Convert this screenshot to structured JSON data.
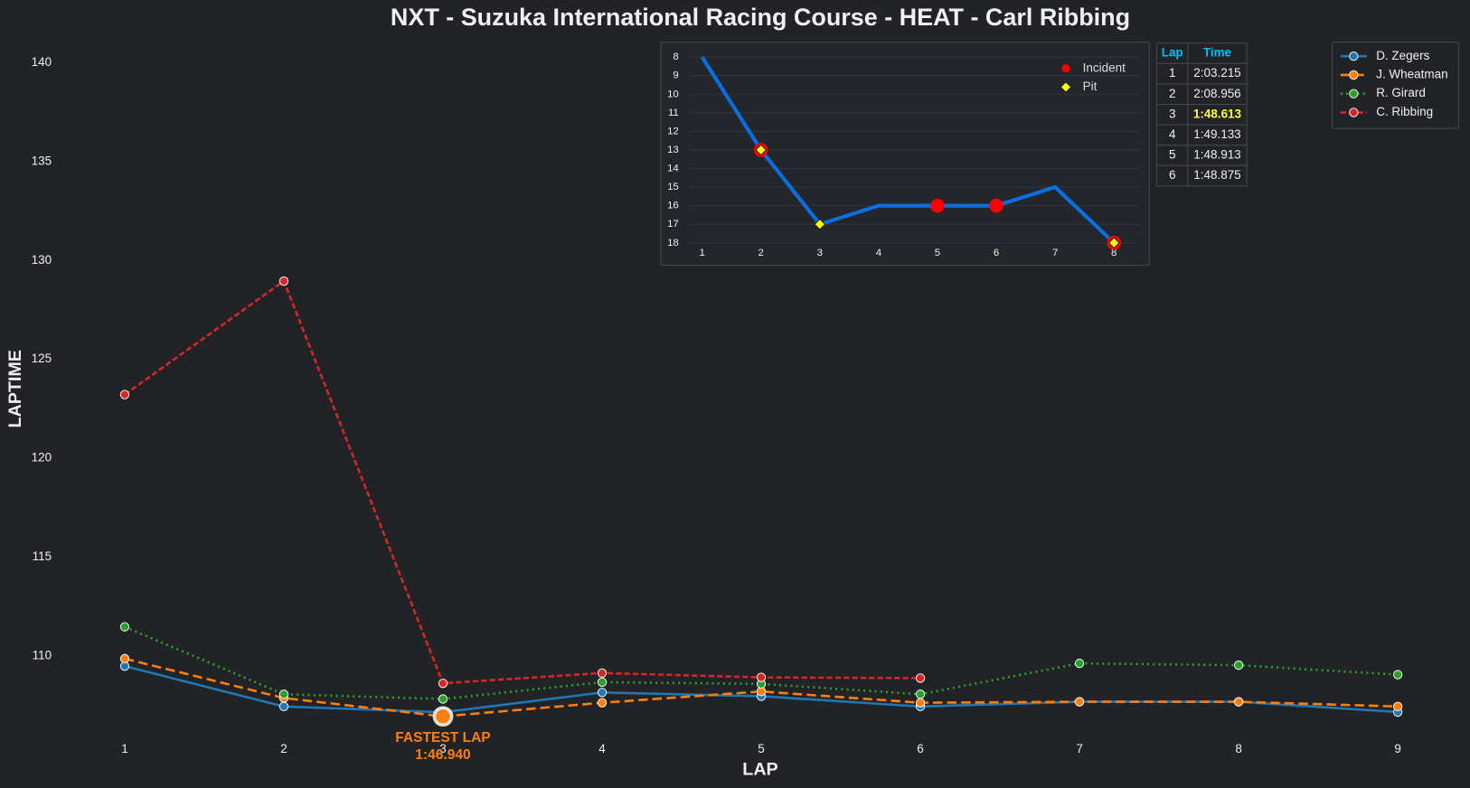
{
  "chart_data": [
    {
      "type": "line",
      "title": "NXT - Suzuka International Racing Course - HEAT - Carl Ribbing",
      "x_label": "LAP",
      "y_label": "LAPTIME",
      "x": [
        1,
        2,
        3,
        4,
        5,
        6,
        7,
        8,
        9
      ],
      "xlim": [
        0.8,
        9.2
      ],
      "xticks": [
        1,
        2,
        3,
        4,
        5,
        6,
        7,
        8,
        9
      ],
      "ylim": [
        106,
        141
      ],
      "yticks": [
        110,
        115,
        120,
        125,
        130,
        135,
        140
      ],
      "legend": "upper right",
      "series": [
        {
          "name": "D. Zegers",
          "color": "#1f77b4",
          "style": "solid",
          "values": [
            109.48,
            107.44,
            107.15,
            108.15,
            107.96,
            107.44,
            107.68,
            107.68,
            107.16
          ]
        },
        {
          "name": "J. Wheatman",
          "color": "#ff7f0e",
          "style": "dashed",
          "values": [
            109.86,
            107.87,
            106.94,
            107.63,
            108.2,
            107.63,
            107.68,
            107.68,
            107.44
          ]
        },
        {
          "name": "R. Girard",
          "color": "#2ca02c",
          "style": "dotted",
          "values": [
            111.47,
            108.06,
            107.82,
            108.67,
            108.58,
            108.06,
            109.62,
            109.53,
            109.05
          ]
        },
        {
          "name": "C. Ribbing",
          "color": "#d62728",
          "style": "dense-dashed",
          "values": [
            123.215,
            128.956,
            108.613,
            109.133,
            108.913,
            108.875,
            null,
            null,
            null
          ]
        }
      ],
      "highlight": {
        "series": 1,
        "point": 2,
        "lines": [
          "FASTEST LAP",
          "1:46.940"
        ],
        "color": "#ff7f0e"
      }
    },
    {
      "type": "line",
      "color": "#0a6fe0",
      "x": [
        1,
        2,
        3,
        4,
        5,
        6,
        7,
        8
      ],
      "values": [
        8,
        13,
        17,
        16,
        16,
        16,
        15,
        18
      ],
      "xlim": [
        0.3,
        8.6
      ],
      "xticks": [
        1,
        2,
        3,
        4,
        5,
        6,
        7,
        8
      ],
      "ylim": [
        19.2,
        7.2
      ],
      "yticks": [
        8,
        9,
        10,
        11,
        12,
        13,
        14,
        15,
        16,
        17,
        18
      ],
      "grid": true,
      "markers": [
        {
          "name": "Incident",
          "color": "#ff0000",
          "shape": "circle",
          "laps": [
            2,
            5,
            6,
            8
          ]
        },
        {
          "name": "Pit",
          "color": "#ffff00",
          "shape": "diamond",
          "laps": [
            2,
            3,
            8
          ]
        }
      ]
    }
  ],
  "table": {
    "columns": [
      "Lap",
      "Time"
    ],
    "rows": [
      [
        "1",
        "2:03.215"
      ],
      [
        "2",
        "2:08.956"
      ],
      [
        "3",
        "1:48.613"
      ],
      [
        "4",
        "1:49.133"
      ],
      [
        "5",
        "1:48.913"
      ],
      [
        "6",
        "1:48.875"
      ]
    ],
    "highlight_row": 2
  }
}
